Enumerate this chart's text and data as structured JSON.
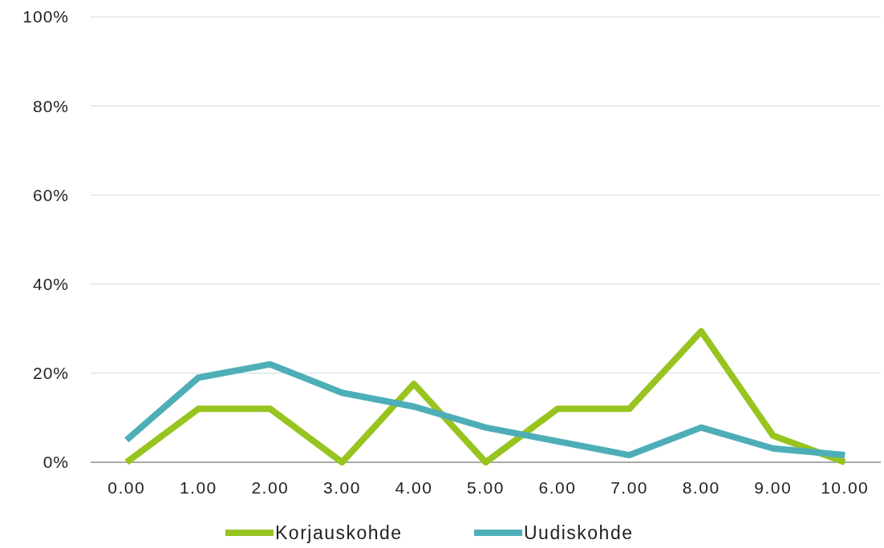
{
  "chart_data": {
    "type": "line",
    "categories": [
      "0.00",
      "1.00",
      "2.00",
      "3.00",
      "4.00",
      "5.00",
      "6.00",
      "7.00",
      "8.00",
      "9.00",
      "10.00"
    ],
    "series": [
      {
        "name": "Korjauskohde",
        "color": "#97c41f",
        "values": [
          0,
          12,
          12,
          0,
          17.6,
          0,
          12,
          12,
          29.4,
          6,
          0
        ]
      },
      {
        "name": "Uudiskohde",
        "color": "#4eaeb8",
        "values": [
          5,
          19,
          22,
          15.6,
          12.5,
          7.8,
          4.7,
          1.6,
          7.8,
          3.1,
          1.6
        ]
      }
    ],
    "ylim": [
      0,
      100
    ],
    "yticks": [
      {
        "value": 0,
        "label": "0%"
      },
      {
        "value": 20,
        "label": "20%"
      },
      {
        "value": 40,
        "label": "40%"
      },
      {
        "value": 60,
        "label": "60%"
      },
      {
        "value": 80,
        "label": "80%"
      },
      {
        "value": 100,
        "label": "100%"
      }
    ],
    "grid": "y",
    "legend": "bottom",
    "marker": "none",
    "line_style": "solid"
  }
}
